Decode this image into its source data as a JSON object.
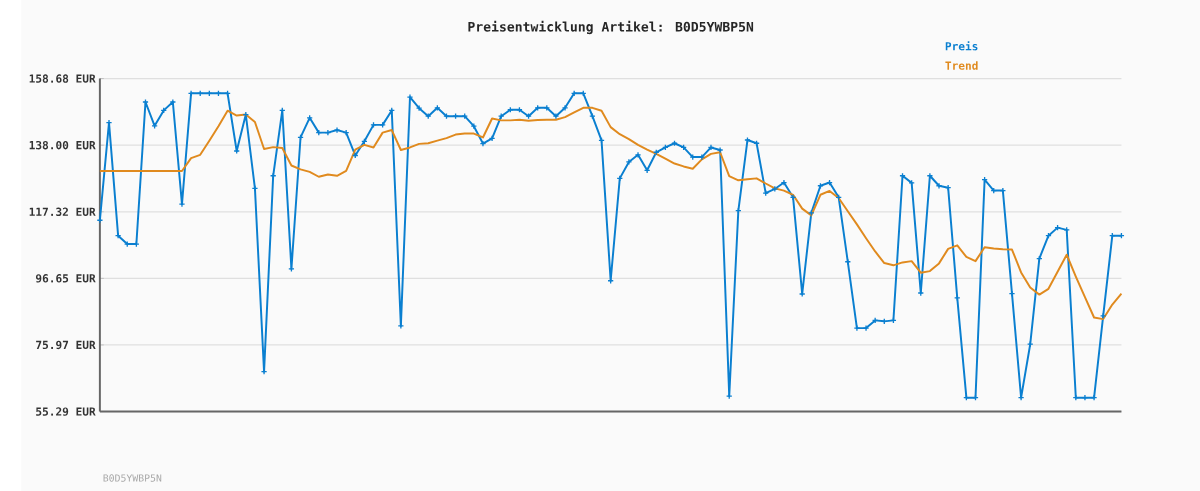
{
  "chart_data": {
    "type": "line",
    "title": "Preisentwicklung Artikel: B0D5YWBP5N",
    "categories": [
      null,
      null,
      null,
      null,
      null,
      null,
      null,
      null,
      null,
      null,
      null,
      null,
      null,
      null,
      null,
      null,
      null,
      null,
      null,
      null,
      null,
      null,
      null,
      null,
      null,
      null,
      null,
      null,
      null,
      null,
      null,
      null,
      null,
      null,
      null,
      null,
      null,
      null,
      null,
      null,
      null,
      null,
      null,
      null,
      null,
      null,
      null,
      null,
      null,
      null,
      null,
      null,
      null,
      null,
      null,
      null,
      null,
      null,
      null,
      null,
      null,
      null,
      null,
      null,
      null,
      null,
      null,
      null,
      null,
      null,
      null,
      null,
      null,
      null,
      null,
      null,
      null,
      null,
      null,
      null,
      null,
      null,
      null,
      null,
      null,
      null,
      null,
      null,
      null,
      null,
      null,
      null,
      null,
      null,
      null,
      null,
      null,
      null,
      null,
      null,
      null,
      null,
      null,
      null,
      null,
      null,
      null,
      null,
      null,
      null,
      null,
      null,
      null
    ],
    "series": [
      {
        "name": "Preis",
        "color": "#0a7fd0",
        "marker": "cross",
        "values": [
          114.7,
          145.0,
          109.9,
          107.3,
          107.3,
          151.4,
          144.0,
          148.8,
          151.4,
          119.7,
          154.1,
          154.1,
          154.1,
          154.1,
          154.1,
          136.2,
          147.5,
          124.6,
          67.7,
          128.5,
          148.8,
          99.6,
          140.4,
          146.5,
          141.9,
          141.9,
          142.7,
          141.9,
          134.8,
          139.2,
          144.3,
          144.3,
          148.8,
          81.9,
          152.9,
          149.5,
          147.0,
          149.6,
          147.0,
          147.0,
          147.0,
          143.9,
          138.5,
          140.1,
          147.0,
          149.0,
          149.0,
          147.0,
          149.6,
          149.6,
          147.0,
          149.6,
          154.1,
          154.1,
          147.0,
          139.5,
          95.9,
          127.7,
          132.8,
          135.0,
          130.2,
          135.8,
          137.3,
          138.6,
          137.3,
          134.3,
          134.3,
          137.3,
          136.5,
          60.1,
          117.7,
          139.6,
          138.6,
          123.1,
          124.4,
          126.4,
          121.8,
          91.8,
          117.0,
          125.4,
          126.4,
          121.8,
          101.8,
          81.2,
          81.2,
          83.6,
          83.3,
          83.6,
          128.5,
          126.3,
          92.1,
          128.5,
          125.4,
          124.8,
          90.6,
          59.6,
          59.6,
          127.3,
          123.9,
          123.9,
          91.9,
          59.6,
          76.2,
          102.8,
          109.9,
          112.4,
          111.7,
          59.6,
          59.6,
          59.6,
          85.0,
          109.9,
          109.9
        ]
      },
      {
        "name": "Trend",
        "color": "#e08a1e",
        "marker": "none",
        "values": [
          130.0,
          130.0,
          130.0,
          130.0,
          130.0,
          130.0,
          130.0,
          130.0,
          130.0,
          130.0,
          134.0,
          135.0,
          139.4,
          143.9,
          148.7,
          147.2,
          147.5,
          145.2,
          136.8,
          137.4,
          137.1,
          131.7,
          130.5,
          129.7,
          128.2,
          128.9,
          128.5,
          130.0,
          136.6,
          138.1,
          137.3,
          141.9,
          142.7,
          136.5,
          137.3,
          138.4,
          138.6,
          139.4,
          140.2,
          141.3,
          141.6,
          141.6,
          140.4,
          146.3,
          145.7,
          145.7,
          145.9,
          145.6,
          145.8,
          145.9,
          145.9,
          146.7,
          148.2,
          149.6,
          149.6,
          148.7,
          143.6,
          141.4,
          139.9,
          138.1,
          136.6,
          135.3,
          133.8,
          132.3,
          131.4,
          130.7,
          133.6,
          135.3,
          135.8,
          128.4,
          127.1,
          127.4,
          127.7,
          126.1,
          124.6,
          123.9,
          122.6,
          118.3,
          116.2,
          122.6,
          123.8,
          121.6,
          117.5,
          113.4,
          109.1,
          105.0,
          101.4,
          100.7,
          101.6,
          102.0,
          98.4,
          98.9,
          101.3,
          105.8,
          106.9,
          103.3,
          102.0,
          106.3,
          105.9,
          105.7,
          105.6,
          98.5,
          93.8,
          91.6,
          93.4,
          98.7,
          104.0,
          97.2,
          90.8,
          84.5,
          84.0,
          88.5,
          91.9
        ]
      }
    ],
    "ylim": [
      55.29,
      158.68
    ],
    "yticks": [
      {
        "value": 55.29,
        "label": "55.29 EUR"
      },
      {
        "value": 75.97,
        "label": "75.97 EUR"
      },
      {
        "value": 96.65,
        "label": "96.65 EUR"
      },
      {
        "value": 117.32,
        "label": "117.32 EUR"
      },
      {
        "value": 138.0,
        "label": "138.00 EUR"
      },
      {
        "value": 158.68,
        "label": "158.68 EUR"
      }
    ],
    "grid": "y",
    "legend": "top right",
    "line_style": "solid",
    "annotations": [
      "B0D5YWBP5N"
    ]
  }
}
